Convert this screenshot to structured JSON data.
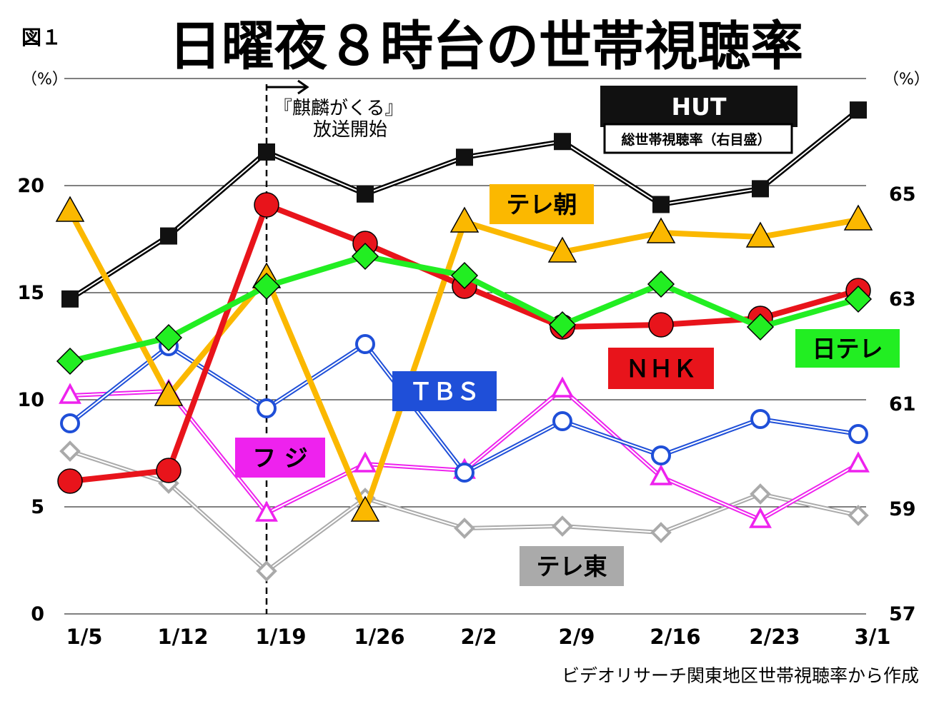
{
  "figure_label": "図１",
  "source_note": "ビデオリサーチ関東地区世帯視聴率から作成",
  "annotation": {
    "line1": "『麒麟がくる』",
    "line2": "放送開始",
    "at_category": "1/19"
  },
  "colors": {
    "NHK": "#e8141b",
    "日テレ": "#22ee22",
    "テレ朝": "#fbb800",
    "TBS": "#1f4fd8",
    "フジ": "#ee22ee",
    "テレ東": "#aaaaaa",
    "HUT": "#111111"
  },
  "chart_data": {
    "type": "line",
    "title": "日曜夜８時台の世帯視聴率",
    "categories": [
      "1/5",
      "1/12",
      "1/19",
      "1/26",
      "2/2",
      "2/9",
      "2/16",
      "2/23",
      "3/1"
    ],
    "left_axis": {
      "unit": "（%）",
      "ylim": [
        0,
        25
      ],
      "ticks": [
        0,
        5,
        10,
        15,
        20
      ]
    },
    "right_axis": {
      "unit": "（%）",
      "ylim": [
        57,
        67.2
      ],
      "ticks": [
        57,
        59,
        61,
        63,
        65
      ]
    },
    "grid": true,
    "series": [
      {
        "name": "NHK",
        "axis": "left",
        "marker": "circle-filled",
        "values": [
          6.2,
          6.7,
          19.1,
          17.3,
          15.3,
          13.4,
          13.5,
          13.8,
          15.1
        ]
      },
      {
        "name": "日テレ",
        "axis": "left",
        "marker": "diamond-filled",
        "values": [
          11.8,
          12.9,
          15.3,
          16.7,
          15.8,
          13.5,
          15.4,
          13.4,
          14.7
        ]
      },
      {
        "name": "テレ朝",
        "axis": "left",
        "marker": "triangle-filled",
        "values": [
          18.8,
          10.2,
          15.7,
          4.8,
          18.3,
          16.9,
          17.8,
          17.6,
          18.4
        ]
      },
      {
        "name": "TBS",
        "axis": "left",
        "marker": "circle-open",
        "values": [
          8.9,
          12.5,
          9.6,
          12.6,
          6.6,
          9.0,
          7.4,
          9.1,
          8.4
        ]
      },
      {
        "name": "フジ",
        "axis": "left",
        "marker": "triangle-open",
        "values": [
          10.2,
          10.4,
          4.7,
          7.0,
          6.7,
          10.5,
          6.4,
          4.4,
          7.0
        ]
      },
      {
        "name": "テレ東",
        "axis": "left",
        "marker": "diamond-open",
        "values": [
          7.6,
          6.1,
          2.0,
          5.4,
          4.0,
          4.1,
          3.8,
          5.6,
          4.6
        ]
      },
      {
        "name": "HUT",
        "axis": "right",
        "marker": "square-filled",
        "values": [
          63.0,
          64.2,
          65.8,
          65.0,
          65.7,
          66.0,
          64.8,
          65.1,
          66.6
        ]
      }
    ],
    "labels": [
      {
        "series": "HUT",
        "text": "HUT",
        "sub": "総世帯視聴率（右目盛）"
      },
      {
        "series": "テレ朝",
        "text": "テレ朝"
      },
      {
        "series": "NHK",
        "text": "ＮＨＫ"
      },
      {
        "series": "日テレ",
        "text": "日テレ"
      },
      {
        "series": "TBS",
        "text": "ＴＢＳ"
      },
      {
        "series": "フジ",
        "text": "フ ジ"
      },
      {
        "series": "テレ東",
        "text": "テレ東"
      }
    ]
  }
}
